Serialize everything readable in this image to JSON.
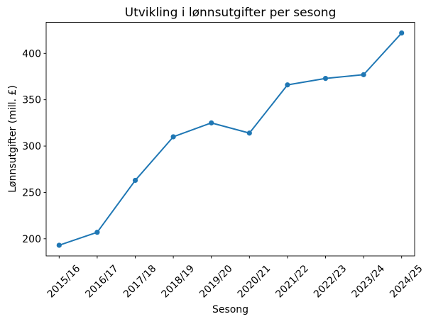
{
  "chart_data": {
    "type": "line",
    "title": "Utvikling i lønnsutgifter per sesong",
    "xlabel": "Sesong",
    "ylabel": "Lønnsutgifter (mill. £)",
    "categories": [
      "2015/16",
      "2016/17",
      "2017/18",
      "2018/19",
      "2019/20",
      "2020/21",
      "2021/22",
      "2022/23",
      "2023/24",
      "2024/25"
    ],
    "values": [
      193,
      207,
      263,
      310,
      325,
      314,
      366,
      373,
      377,
      422
    ],
    "yticks": [
      200,
      250,
      300,
      350,
      400
    ],
    "ylim": [
      181.5,
      433.5
    ],
    "line_color": "#1f77b4",
    "marker": "circle",
    "grid": false,
    "legend": null,
    "x_tick_rotation_deg": 45
  }
}
